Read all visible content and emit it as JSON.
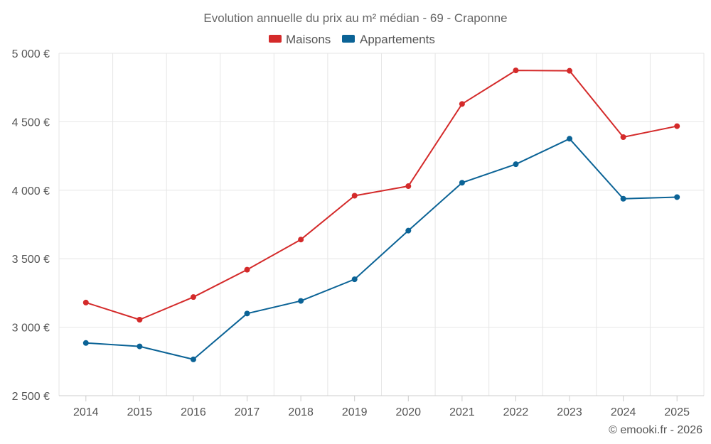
{
  "chart_data": {
    "type": "line",
    "title": "Evolution annuelle du prix au m² médian - 69 - Craponne",
    "categories": [
      "2014",
      "2015",
      "2016",
      "2017",
      "2018",
      "2019",
      "2020",
      "2021",
      "2022",
      "2023",
      "2024",
      "2025"
    ],
    "series": [
      {
        "name": "Maisons",
        "color": "#d42a2a",
        "values": [
          3180,
          3055,
          3220,
          3420,
          3640,
          3960,
          4030,
          4630,
          4875,
          4872,
          4388,
          4468
        ]
      },
      {
        "name": "Appartements",
        "color": "#0b6396",
        "values": [
          2885,
          2860,
          2765,
          3100,
          3192,
          3350,
          3705,
          4055,
          4190,
          4376,
          3938,
          3950
        ]
      }
    ],
    "ylim": [
      2500,
      5000
    ],
    "yticks": [
      {
        "value": 2500,
        "label": "2 500 €"
      },
      {
        "value": 3000,
        "label": "3 000 €"
      },
      {
        "value": 3500,
        "label": "3 500 €"
      },
      {
        "value": 4000,
        "label": "4 000 €"
      },
      {
        "value": 4500,
        "label": "4 500 €"
      },
      {
        "value": 5000,
        "label": "5 000 €"
      }
    ],
    "xlabel": "",
    "ylabel": "",
    "grid": true,
    "legend_position": "top-center"
  },
  "credit": "© emooki.fr - 2026"
}
